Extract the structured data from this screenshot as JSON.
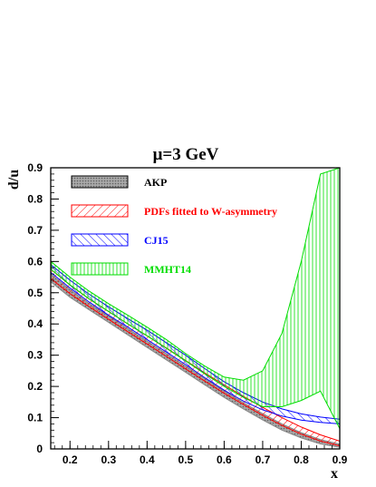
{
  "chart_data": {
    "type": "line",
    "title": "μ=3 GeV",
    "xlabel": "x",
    "ylabel": "d/u",
    "xlim": [
      0.15,
      0.9
    ],
    "ylim": [
      0,
      0.9
    ],
    "x_ticks": [
      "0.2",
      "0.3",
      "0.4",
      "0.5",
      "0.6",
      "0.7",
      "0.8",
      "0.9"
    ],
    "y_ticks": [
      "0",
      "0.1",
      "0.2",
      "0.3",
      "0.4",
      "0.5",
      "0.6",
      "0.7",
      "0.8",
      "0.9"
    ],
    "grid": false,
    "legend_position": "top-left",
    "series": [
      {
        "name": "AKP",
        "color": "#888888",
        "fill": "dots",
        "x": [
          0.15,
          0.2,
          0.25,
          0.3,
          0.35,
          0.4,
          0.45,
          0.5,
          0.55,
          0.6,
          0.65,
          0.7,
          0.75,
          0.8,
          0.85,
          0.9
        ],
        "upper": [
          0.56,
          0.51,
          0.465,
          0.425,
          0.385,
          0.345,
          0.305,
          0.265,
          0.225,
          0.185,
          0.148,
          0.113,
          0.08,
          0.052,
          0.03,
          0.015
        ],
        "lower": [
          0.535,
          0.485,
          0.445,
          0.405,
          0.365,
          0.325,
          0.285,
          0.245,
          0.205,
          0.165,
          0.128,
          0.093,
          0.06,
          0.035,
          0.016,
          0.005
        ]
      },
      {
        "name": "PDFs fitted to W-asymmetry",
        "color": "#ff0000",
        "fill": "hatch-right",
        "x": [
          0.15,
          0.2,
          0.25,
          0.3,
          0.35,
          0.4,
          0.45,
          0.5,
          0.55,
          0.6,
          0.65,
          0.7,
          0.75,
          0.8,
          0.85,
          0.9
        ],
        "upper": [
          0.575,
          0.525,
          0.48,
          0.44,
          0.4,
          0.362,
          0.323,
          0.283,
          0.243,
          0.205,
          0.168,
          0.133,
          0.1,
          0.07,
          0.045,
          0.025
        ],
        "lower": [
          0.545,
          0.497,
          0.455,
          0.415,
          0.375,
          0.336,
          0.296,
          0.256,
          0.217,
          0.178,
          0.142,
          0.107,
          0.075,
          0.047,
          0.025,
          0.01
        ]
      },
      {
        "name": "CJ15",
        "color": "#0000ff",
        "fill": "hatch-left",
        "x": [
          0.15,
          0.2,
          0.25,
          0.3,
          0.35,
          0.4,
          0.45,
          0.5,
          0.55,
          0.6,
          0.65,
          0.7,
          0.75,
          0.8,
          0.85,
          0.9
        ],
        "upper": [
          0.59,
          0.54,
          0.495,
          0.455,
          0.417,
          0.38,
          0.34,
          0.3,
          0.257,
          0.215,
          0.18,
          0.15,
          0.128,
          0.112,
          0.102,
          0.095
        ],
        "lower": [
          0.565,
          0.515,
          0.47,
          0.428,
          0.39,
          0.35,
          0.31,
          0.27,
          0.228,
          0.188,
          0.153,
          0.125,
          0.105,
          0.092,
          0.085,
          0.08
        ]
      },
      {
        "name": "MMHT14",
        "color": "#00dd00",
        "fill": "hatch-vertical",
        "x": [
          0.15,
          0.2,
          0.25,
          0.3,
          0.35,
          0.4,
          0.45,
          0.5,
          0.55,
          0.6,
          0.65,
          0.7,
          0.75,
          0.8,
          0.85,
          0.9
        ],
        "upper": [
          0.6,
          0.55,
          0.505,
          0.465,
          0.428,
          0.39,
          0.35,
          0.305,
          0.265,
          0.23,
          0.22,
          0.25,
          0.37,
          0.6,
          0.88,
          0.9
        ],
        "lower": [
          0.575,
          0.525,
          0.48,
          0.44,
          0.4,
          0.362,
          0.322,
          0.282,
          0.24,
          0.2,
          0.165,
          0.135,
          0.135,
          0.155,
          0.185,
          0.065
        ]
      }
    ]
  }
}
